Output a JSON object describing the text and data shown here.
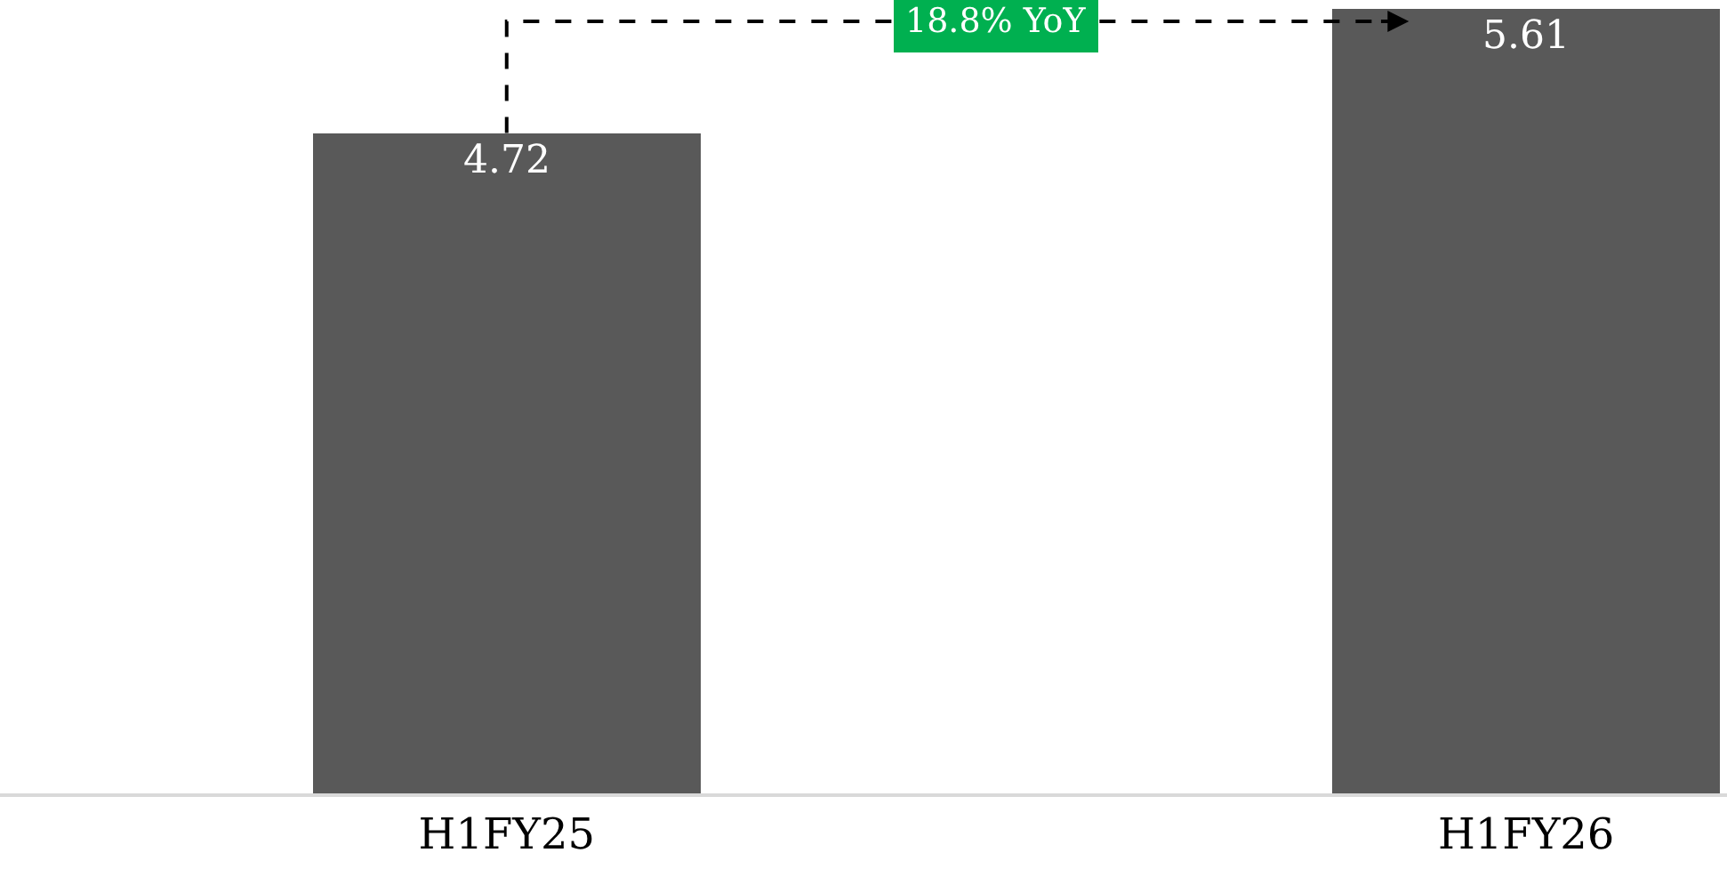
{
  "chart_data": {
    "type": "bar",
    "categories": [
      "H1FY25",
      "H1FY26"
    ],
    "values": [
      4.72,
      5.61
    ],
    "color": "#595959",
    "data_labels": true,
    "ylim": [
      0,
      5.67
    ],
    "annotations": [
      "18.8% YoY"
    ]
  }
}
